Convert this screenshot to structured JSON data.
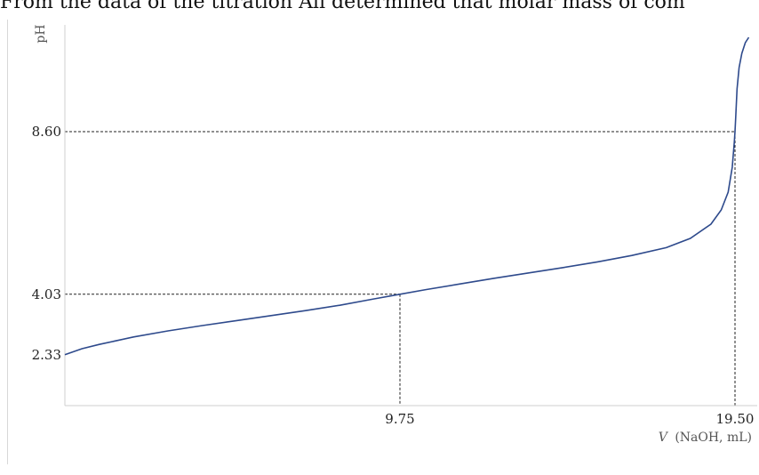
{
  "page": {
    "caption": "From the data of the titration Ali determined that molar mass of com"
  },
  "chart_data": {
    "type": "line",
    "title": "",
    "ylabel": "pH",
    "xlabel_italic": "V",
    "xlabel_rest": "(NaOH, mL)",
    "xlim": [
      0,
      19.5
    ],
    "ylim": [
      0.9,
      11.6
    ],
    "x_ticks": [
      "9.75",
      "19.50"
    ],
    "y_ticks": [
      "2.33",
      "4.03",
      "8.60"
    ],
    "reference_lines": [
      {
        "x": 9.75,
        "y": 4.03
      },
      {
        "x": 19.5,
        "y": 8.6
      }
    ],
    "line_color": "#2e4a8c",
    "series": [
      {
        "points": [
          [
            0,
            2.33
          ],
          [
            0.5,
            2.5
          ],
          [
            1,
            2.62
          ],
          [
            2,
            2.83
          ],
          [
            3,
            3.0
          ],
          [
            4,
            3.15
          ],
          [
            5,
            3.29
          ],
          [
            6,
            3.43
          ],
          [
            7,
            3.57
          ],
          [
            8,
            3.72
          ],
          [
            9,
            3.9
          ],
          [
            9.75,
            4.03
          ],
          [
            10.5,
            4.16
          ],
          [
            11.5,
            4.32
          ],
          [
            12.5,
            4.48
          ],
          [
            13.5,
            4.63
          ],
          [
            14.5,
            4.78
          ],
          [
            15.5,
            4.94
          ],
          [
            16.5,
            5.12
          ],
          [
            17.5,
            5.34
          ],
          [
            18.2,
            5.6
          ],
          [
            18.8,
            6.0
          ],
          [
            19.1,
            6.4
          ],
          [
            19.3,
            6.9
          ],
          [
            19.42,
            7.6
          ],
          [
            19.48,
            8.3
          ],
          [
            19.5,
            8.6
          ],
          [
            19.52,
            9.0
          ],
          [
            19.56,
            9.8
          ],
          [
            19.62,
            10.4
          ],
          [
            19.7,
            10.8
          ],
          [
            19.8,
            11.1
          ],
          [
            19.9,
            11.25
          ]
        ]
      }
    ]
  }
}
